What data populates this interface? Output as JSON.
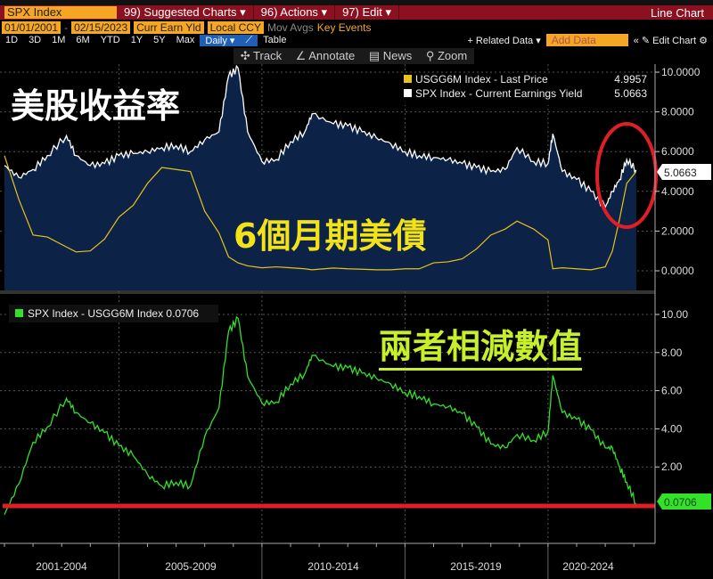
{
  "header": {
    "ticker": "SPX Index",
    "menu": [
      "99) Suggested Charts ▾",
      "96) Actions ▾",
      "97) Edit ▾"
    ],
    "chart_type": "Line Chart"
  },
  "controls": {
    "start_date": "01/01/2001",
    "end_date": "02/15/2023",
    "field": "Curr Earn Yld",
    "currency": "Local CCY",
    "mov_avgs": "Mov Avgs",
    "key_events": "Key Events",
    "periods": [
      "1D",
      "3D",
      "1M",
      "6M",
      "YTD",
      "1Y",
      "5Y",
      "Max"
    ],
    "frequency": "Daily ▾",
    "table": "Table",
    "related_data": "+ Related Data ▾",
    "add_data_placeholder": "Add Data",
    "edit_chart": "« ✎ Edit Chart ⚙"
  },
  "toolbar": {
    "track": "✣ Track",
    "annotate": "∠ Annotate",
    "news": "▤ News",
    "zoom": "⚲ Zoom"
  },
  "annotations": {
    "top_title": "美股收益率",
    "yellow_label": "6個月期美債",
    "bottom_title": "兩者相減數值"
  },
  "colors": {
    "white_series": "#ffffff",
    "yellow_series": "#e8c21a",
    "green_series": "#33e02a",
    "area_fill": "#0c2347",
    "red_marker": "#e01e25"
  },
  "chart_data": [
    {
      "type": "line",
      "panel": "top",
      "ylim": [
        0,
        10
      ],
      "yticks": [
        "10.0000",
        "8.0000",
        "6.0000",
        "4.0000",
        "2.0000",
        "0.0000"
      ],
      "grid": true,
      "legend": "top-right",
      "x": [
        "2001-01",
        "2001-07",
        "2002-01",
        "2002-07",
        "2003-03",
        "2003-07",
        "2004-01",
        "2004-07",
        "2005-01",
        "2005-07",
        "2006-01",
        "2006-07",
        "2007-01",
        "2007-07",
        "2008-01",
        "2008-07",
        "2008-11",
        "2009-03",
        "2009-07",
        "2010-01",
        "2010-07",
        "2011-01",
        "2011-07",
        "2011-10",
        "2012-07",
        "2013-01",
        "2013-07",
        "2014-01",
        "2014-07",
        "2015-01",
        "2015-07",
        "2016-01",
        "2016-07",
        "2017-01",
        "2017-07",
        "2018-01",
        "2018-07",
        "2018-12",
        "2019-07",
        "2020-01",
        "2020-03",
        "2020-07",
        "2021-01",
        "2021-07",
        "2022-01",
        "2022-04",
        "2022-07",
        "2022-10",
        "2023-02"
      ],
      "series": [
        {
          "name": "USGG6M Index - Last Price",
          "last": "4.9957",
          "color": "#e8c21a",
          "values": [
            5.8,
            3.6,
            1.8,
            1.7,
            1.2,
            0.95,
            1.0,
            1.6,
            2.7,
            3.3,
            4.4,
            5.2,
            5.1,
            5.0,
            3.0,
            1.9,
            0.7,
            0.4,
            0.25,
            0.15,
            0.2,
            0.15,
            0.1,
            0.05,
            0.14,
            0.1,
            0.08,
            0.05,
            0.05,
            0.1,
            0.1,
            0.4,
            0.45,
            0.6,
            1.1,
            1.8,
            2.1,
            2.5,
            2.1,
            1.55,
            0.1,
            0.15,
            0.1,
            0.05,
            0.2,
            1.0,
            2.6,
            4.4,
            5.0
          ]
        },
        {
          "name": "SPX Index - Current Earnings Yield",
          "last": "5.0663",
          "color": "#ffffff",
          "values": [
            5.3,
            4.7,
            5.1,
            5.8,
            6.8,
            5.8,
            5.3,
            5.4,
            5.8,
            5.9,
            6.0,
            6.2,
            6.3,
            6.0,
            6.6,
            7.0,
            9.8,
            10.2,
            7.0,
            5.5,
            5.6,
            6.5,
            7.0,
            7.9,
            7.4,
            7.3,
            7.0,
            6.7,
            6.4,
            6.0,
            5.8,
            5.7,
            5.6,
            5.4,
            5.2,
            5.0,
            5.1,
            6.2,
            5.5,
            5.4,
            6.9,
            5.0,
            4.6,
            4.0,
            3.2,
            4.0,
            4.6,
            5.6,
            5.07
          ]
        }
      ],
      "current_value_tag": "5.0663"
    },
    {
      "type": "line",
      "panel": "bottom",
      "ylim": [
        -2,
        10
      ],
      "yticks": [
        "10.00",
        "8.00",
        "6.00",
        "4.00",
        "2.00"
      ],
      "grid": true,
      "legend": "top-left",
      "x_ref": "same as top panel",
      "series": [
        {
          "name": "SPX Index - USGG6M Index",
          "last": "0.0706",
          "color": "#33e02a",
          "values": [
            -0.5,
            1.1,
            3.3,
            4.1,
            5.6,
            4.85,
            4.3,
            3.8,
            3.1,
            2.6,
            1.6,
            1.0,
            1.2,
            1.0,
            3.6,
            5.1,
            9.1,
            9.8,
            6.75,
            5.35,
            5.4,
            6.35,
            6.9,
            7.85,
            7.26,
            7.2,
            6.92,
            6.65,
            6.35,
            5.9,
            5.7,
            5.3,
            5.15,
            4.8,
            4.1,
            3.2,
            3.0,
            3.7,
            3.4,
            3.85,
            6.8,
            4.85,
            4.5,
            3.95,
            3.0,
            3.0,
            2.0,
            1.2,
            0.0706
          ]
        }
      ],
      "reference_line": 0,
      "current_value_tag": "0.0706"
    }
  ],
  "x_axis": {
    "labels": [
      "2001-2004",
      "2005-2009",
      "2010-2014",
      "2015-2019",
      "2020-2024"
    ]
  }
}
